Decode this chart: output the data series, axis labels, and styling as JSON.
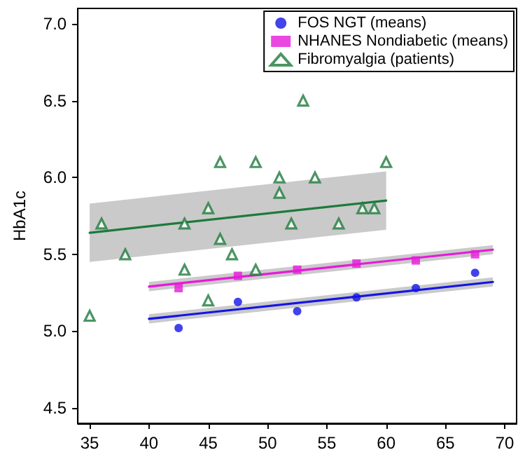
{
  "chart_data": {
    "type": "scatter",
    "ylabel": "HbA1c",
    "xlim": [
      34,
      71
    ],
    "xticks": [
      35,
      40,
      45,
      50,
      55,
      60,
      65,
      70
    ],
    "ylim": [
      4.4,
      7.1
    ],
    "yticks": [
      4.5,
      {
        "value": 5,
        "label": "5.0"
      },
      5.5,
      {
        "value": 6,
        "label": "6.0"
      },
      6.5,
      {
        "value": 7,
        "label": "7.0"
      }
    ],
    "grid": false,
    "legend": "top right",
    "series": [
      {
        "name": "FOS NGT (means)",
        "marker": "circle",
        "color": "#1414e6",
        "x": [
          42.5,
          47.5,
          52.5,
          57.5,
          62.5,
          67.5
        ],
        "values": [
          5.02,
          5.19,
          5.13,
          5.22,
          5.28,
          5.38
        ]
      },
      {
        "name": "NHANES Nondiabetic (means)",
        "marker": "square",
        "color": "#e619d9",
        "x": [
          42.5,
          47.5,
          52.5,
          57.5,
          62.5,
          67.5
        ],
        "values": [
          5.28,
          5.36,
          5.4,
          5.44,
          5.46,
          5.5
        ]
      },
      {
        "name": "Fibromyalgia (patients)",
        "marker": "triangle",
        "color": "#1e7a3c",
        "x": [
          35,
          36,
          38,
          43,
          43,
          45,
          45,
          46,
          46,
          47,
          49,
          49,
          51,
          51,
          52,
          54,
          53,
          56,
          58,
          59,
          60
        ],
        "values": [
          5.1,
          5.7,
          5.5,
          5.4,
          5.7,
          5.8,
          5.2,
          6.1,
          5.6,
          5.5,
          6.1,
          5.4,
          6.0,
          5.9,
          5.7,
          6.0,
          6.5,
          5.7,
          5.8,
          5.8,
          6.1
        ]
      },
      {
        "type": "line",
        "color": "#1414e6",
        "x": [
          40,
          69
        ],
        "values": [
          5.08,
          5.32
        ],
        "lower": [
          5.05,
          5.29
        ],
        "upper": [
          5.11,
          5.35
        ]
      },
      {
        "type": "line",
        "color": "#e619d9",
        "x": [
          40,
          69
        ],
        "values": [
          5.29,
          5.53
        ],
        "lower": [
          5.26,
          5.5
        ],
        "upper": [
          5.32,
          5.56
        ]
      },
      {
        "type": "line",
        "color": "#1e7a3c",
        "x": [
          35,
          60
        ],
        "values": [
          5.64,
          5.85
        ],
        "lower": [
          5.45,
          5.66
        ],
        "upper": [
          5.83,
          6.04
        ]
      }
    ]
  }
}
